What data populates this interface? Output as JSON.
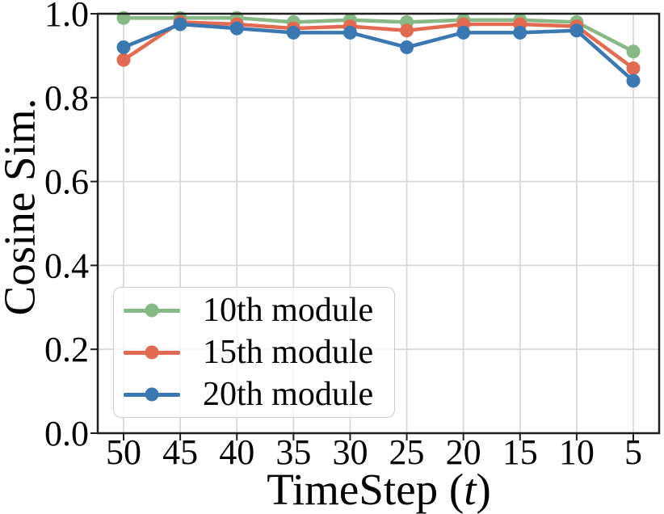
{
  "figure": {
    "background": "#ffffff"
  },
  "chart_data": {
    "type": "line",
    "title": "",
    "xlabel": "TimeStep (t)",
    "xlabel_prefix": "TimeStep (",
    "xlabel_var": "t",
    "xlabel_suffix": ")",
    "ylabel": "Cosine Sim.",
    "x": [
      50,
      45,
      40,
      35,
      30,
      25,
      20,
      15,
      10,
      5
    ],
    "x_tick_labels": [
      "50",
      "45",
      "40",
      "35",
      "30",
      "25",
      "20",
      "15",
      "10",
      "5"
    ],
    "y_ticks": [
      0.0,
      0.2,
      0.4,
      0.6,
      0.8,
      1.0
    ],
    "y_tick_labels": [
      "0.0",
      "0.2",
      "0.4",
      "0.6",
      "0.8",
      "1.0"
    ],
    "ylim": [
      0.0,
      1.0
    ],
    "grid": true,
    "legend_position": "lower-left",
    "axis_color": "#1f1f1f",
    "grid_color": "#d8d8d8",
    "tick_color": "#1f1f1f",
    "series": [
      {
        "name": "10th module",
        "color": "#87b987",
        "values": [
          0.99,
          0.99,
          0.99,
          0.98,
          0.985,
          0.98,
          0.985,
          0.985,
          0.98,
          0.91
        ]
      },
      {
        "name": "15th module",
        "color": "#e26a50",
        "values": [
          0.89,
          0.98,
          0.975,
          0.965,
          0.97,
          0.96,
          0.975,
          0.975,
          0.97,
          0.87
        ]
      },
      {
        "name": "20th module",
        "color": "#3b77b0",
        "values": [
          0.92,
          0.975,
          0.965,
          0.955,
          0.955,
          0.92,
          0.955,
          0.955,
          0.96,
          0.84
        ]
      }
    ]
  }
}
